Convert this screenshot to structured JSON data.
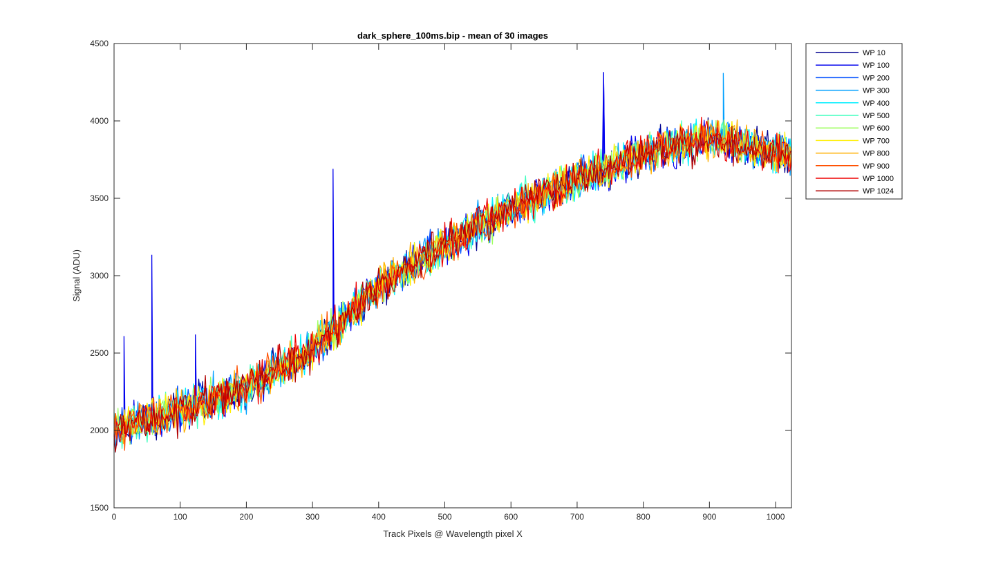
{
  "chart_data": {
    "type": "line",
    "title": "dark_sphere_100ms.bip - mean of 30 images",
    "xlabel": "Track Pixels @ Wavelength pixel X",
    "ylabel": "Signal (ADU)",
    "xlim": [
      0,
      1024
    ],
    "ylim": [
      1500,
      4500
    ],
    "xticks": [
      0,
      100,
      200,
      300,
      400,
      500,
      600,
      700,
      800,
      900,
      1000
    ],
    "yticks": [
      1500,
      2000,
      2500,
      3000,
      3500,
      4000,
      4500
    ],
    "legend_position": "outside-top-right",
    "grid": false,
    "trend_points": [
      [
        0,
        2000
      ],
      [
        100,
        2130
      ],
      [
        200,
        2280
      ],
      [
        300,
        2520
      ],
      [
        400,
        2930
      ],
      [
        500,
        3200
      ],
      [
        600,
        3440
      ],
      [
        700,
        3620
      ],
      [
        800,
        3780
      ],
      [
        900,
        3890
      ],
      [
        1000,
        3800
      ],
      [
        1024,
        3780
      ]
    ],
    "noise_amplitude": 110,
    "spikes": [
      {
        "series": "WP 100",
        "x": 15,
        "y": 2610
      },
      {
        "series": "WP 100",
        "x": 57,
        "y": 3135
      },
      {
        "series": "WP 100",
        "x": 123,
        "y": 2620
      },
      {
        "series": "WP 100",
        "x": 331,
        "y": 3690
      },
      {
        "series": "WP 100",
        "x": 740,
        "y": 4315
      },
      {
        "series": "WP 300",
        "x": 921,
        "y": 4310
      }
    ],
    "series": [
      {
        "name": "WP 10",
        "color": "#00008f"
      },
      {
        "name": "WP 100",
        "color": "#0000ee"
      },
      {
        "name": "WP 200",
        "color": "#0050ff"
      },
      {
        "name": "WP 300",
        "color": "#00a0ff"
      },
      {
        "name": "WP 400",
        "color": "#00efff"
      },
      {
        "name": "WP 500",
        "color": "#40ffbf"
      },
      {
        "name": "WP 600",
        "color": "#9fff60"
      },
      {
        "name": "WP 700",
        "color": "#ffef00"
      },
      {
        "name": "WP 800",
        "color": "#ffaf00"
      },
      {
        "name": "WP 900",
        "color": "#ff5000"
      },
      {
        "name": "WP 1000",
        "color": "#ee0000"
      },
      {
        "name": "WP 1024",
        "color": "#b00000"
      }
    ]
  }
}
